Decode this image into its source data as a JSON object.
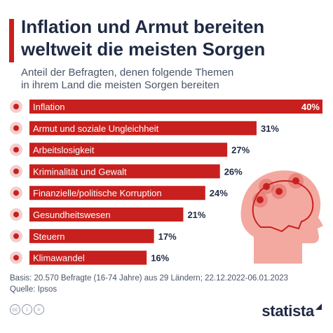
{
  "header": {
    "title_line1": "Inflation und Armut bereiten",
    "title_line2": "weltweit die meisten Sorgen",
    "subtitle_line1": "Anteil der Befragten, denen folgende Themen",
    "subtitle_line2": "in ihrem Land die meisten Sorgen bereiten"
  },
  "chart_data": {
    "type": "bar",
    "orientation": "horizontal",
    "categories": [
      "Inflation",
      "Armut und soziale Ungleichheit",
      "Arbeitslosigkeit",
      "Kriminalität und Gewalt",
      "Finanzielle/politische Korruption",
      "Gesundheitswesen",
      "Steuern",
      "Klimawandel"
    ],
    "values": [
      40,
      31,
      27,
      26,
      24,
      21,
      17,
      16
    ],
    "value_labels": [
      "40%",
      "31%",
      "27%",
      "26%",
      "24%",
      "21%",
      "17%",
      "16%"
    ],
    "unit": "%",
    "xlim": [
      0,
      40
    ],
    "grid": false,
    "legend": "none",
    "bar_color": "#c8201e",
    "label_color": "#1f2a44"
  },
  "footer": {
    "basis": "Basis: 20.570 Befragte (16-74 Jahre) aus 29 Ländern; 22.12.2022-06.01.2023",
    "source": "Quelle: Ipsos",
    "brand": "statista",
    "icons": [
      "creative-commons-icon",
      "attribution-icon",
      "no-derivatives-icon"
    ]
  },
  "decoration": {
    "illustration": "head-with-worry-points-icon",
    "illustration_color": "#f4a9a0",
    "worry_point_color": "#c8201e"
  }
}
